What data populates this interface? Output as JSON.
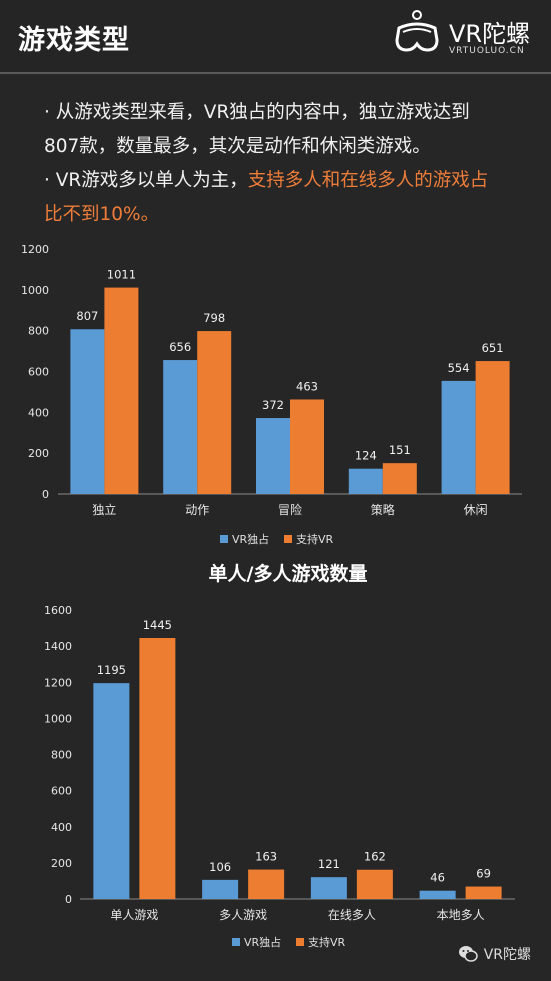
{
  "header": {
    "title": "游戏类型",
    "logo_text": "VR陀螺",
    "logo_sub": "VRTUOLUO.CN"
  },
  "bullets": {
    "b1_dot": "·",
    "b1_line1": "从游戏类型来看，VR独占的内容中，独立游戏达到",
    "b1_line2": "807款，数量最多，其次是动作和休闲类游戏。",
    "b2_dot": "·",
    "b2_plain": "VR游戏多以单人为主，",
    "b2_hl1": "支持多人和在线多人的游戏占",
    "b2_hl2": "比不到10%。"
  },
  "colors": {
    "blue": "#5b9bd5",
    "orange": "#ed7d31"
  },
  "chart_data": [
    {
      "type": "bar",
      "title": "",
      "categories": [
        "独立",
        "动作",
        "冒险",
        "策略",
        "休闲"
      ],
      "series": [
        {
          "name": "VR独占",
          "values": [
            807,
            656,
            372,
            124,
            554
          ]
        },
        {
          "name": "支持VR",
          "values": [
            1011,
            798,
            463,
            151,
            651
          ]
        }
      ],
      "ylim": [
        0,
        1200
      ],
      "yticks": [
        0,
        200,
        400,
        600,
        800,
        1000,
        1200
      ],
      "legend": "bottom"
    },
    {
      "type": "bar",
      "title": "单人/多人游戏数量",
      "categories": [
        "单人游戏",
        "多人游戏",
        "在线多人",
        "本地多人"
      ],
      "series": [
        {
          "name": "VR独占",
          "values": [
            1195,
            106,
            121,
            46
          ]
        },
        {
          "name": "支持VR",
          "values": [
            1445,
            163,
            162,
            69
          ]
        }
      ],
      "ylim": [
        0,
        1600
      ],
      "yticks": [
        0,
        200,
        400,
        600,
        800,
        1000,
        1200,
        1400,
        1600
      ],
      "legend": "bottom"
    }
  ],
  "footer": {
    "text": "VR陀螺",
    "icon": "wechat-icon"
  }
}
